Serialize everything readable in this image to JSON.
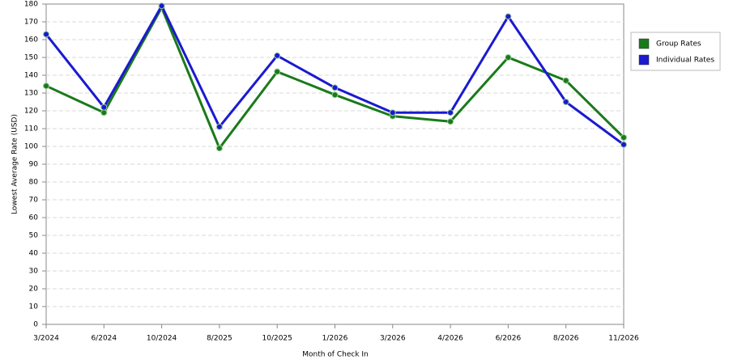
{
  "chart_data": {
    "type": "line",
    "x_label": "Month of Check In",
    "y_label": "Lowest Average Rate (USD)",
    "categories": [
      "3/2024",
      "6/2024",
      "10/2024",
      "8/2025",
      "10/2025",
      "1/2026",
      "3/2026",
      "4/2026",
      "6/2026",
      "8/2026",
      "11/2026"
    ],
    "series": [
      {
        "name": "Group Rates",
        "color": "#1a7a1a",
        "values": [
          134,
          119,
          178,
          99,
          142,
          129,
          117,
          114,
          150,
          137,
          105
        ]
      },
      {
        "name": "Individual Rates",
        "color": "#1a1ad0",
        "values": [
          163,
          122,
          179,
          111,
          151,
          133,
          119,
          119,
          173,
          125,
          101
        ]
      }
    ],
    "ylim": [
      0,
      180
    ],
    "yticks": [
      0,
      10,
      20,
      30,
      40,
      50,
      60,
      70,
      80,
      90,
      100,
      110,
      120,
      130,
      140,
      150,
      160,
      170,
      180
    ],
    "grid": true,
    "legend": "right"
  }
}
